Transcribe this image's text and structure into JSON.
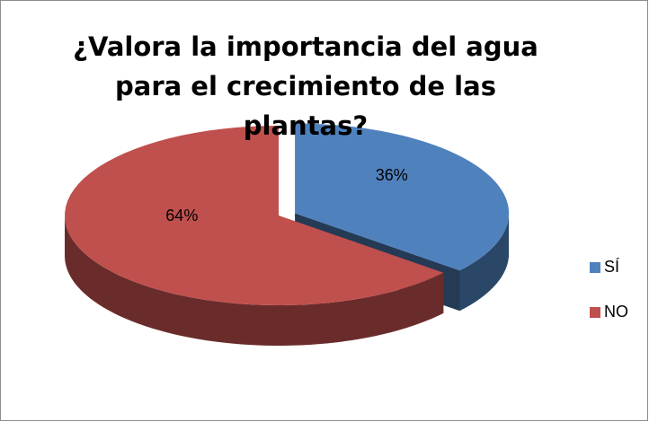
{
  "chart_data": {
    "type": "pie",
    "title": "¿Valora la importancia del agua para el crecimiento de las plantas?",
    "categories": [
      "SÍ",
      "NO"
    ],
    "values": [
      36,
      64
    ],
    "value_labels": [
      "36%",
      "64%"
    ],
    "colors": [
      "#4f81bd",
      "#c0504d"
    ],
    "legend": "right"
  }
}
